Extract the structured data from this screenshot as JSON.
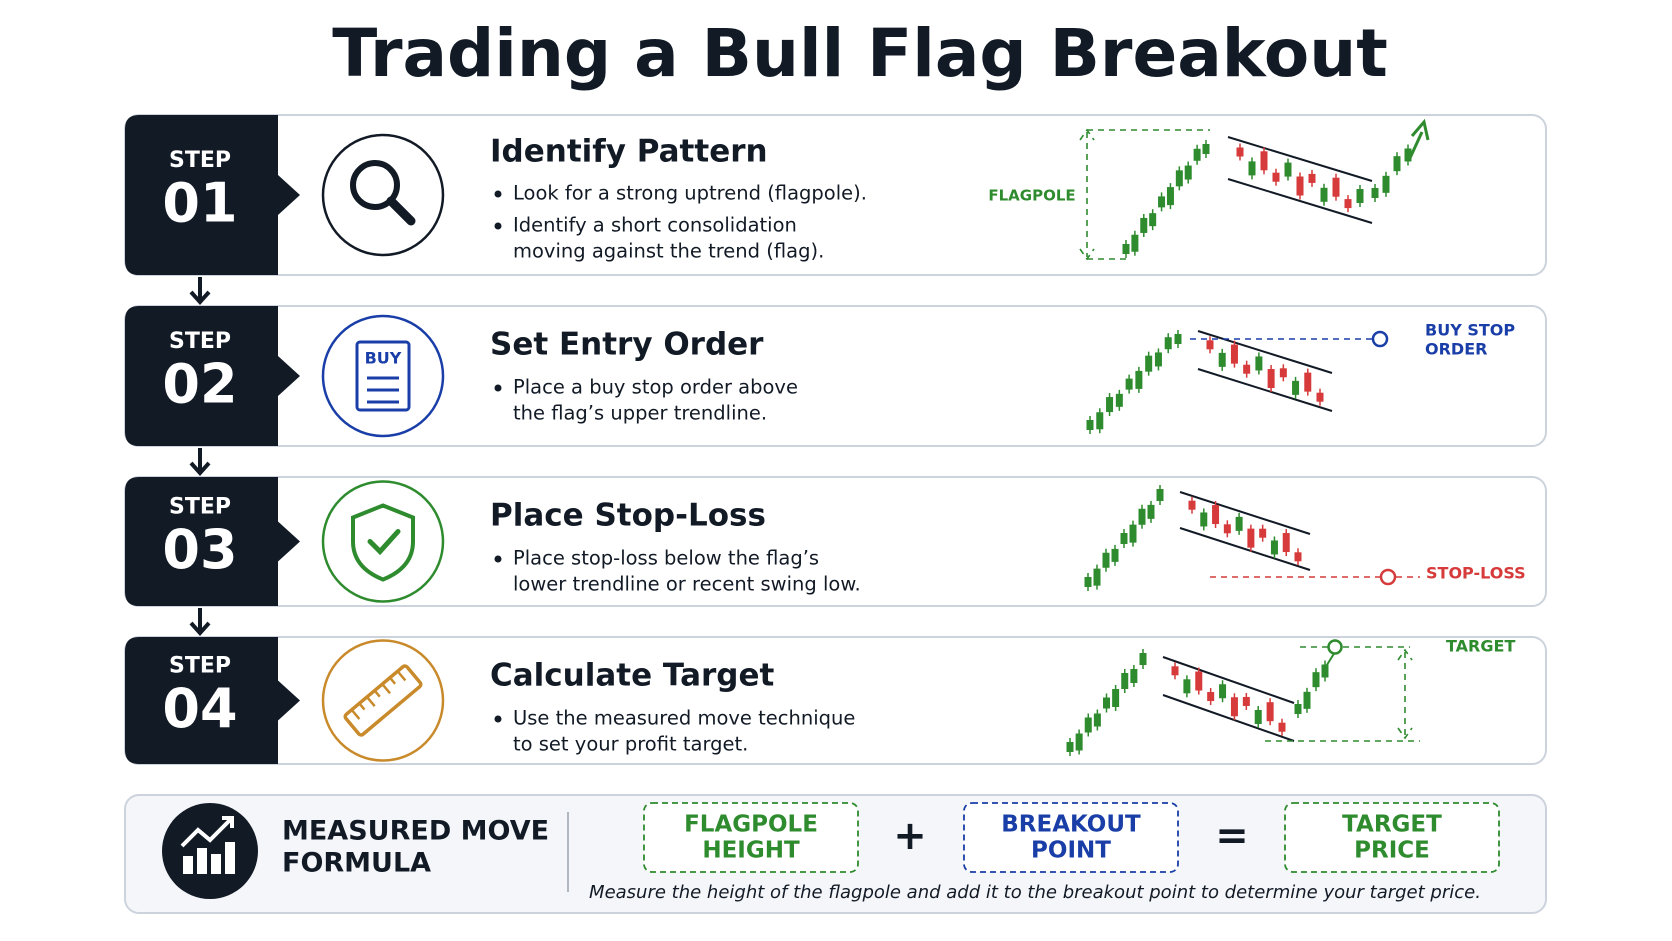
{
  "title": "Trading a Bull Flag Breakout",
  "steps": [
    {
      "label": "STEP",
      "number": "01",
      "heading": "Identify Pattern",
      "bullets": [
        [
          "Look for a strong uptrend (flagpole)."
        ],
        [
          "Identify a short consolidation",
          "moving against the trend (flag)."
        ]
      ],
      "chart_labels": [
        "FLAGPOLE"
      ]
    },
    {
      "label": "STEP",
      "number": "02",
      "heading": "Set Entry Order",
      "icon_label": "BUY",
      "bullets": [
        [
          "Place a buy stop order above",
          "the flag’s upper trendline."
        ]
      ],
      "chart_labels": [
        "BUY STOP",
        "ORDER"
      ]
    },
    {
      "label": "STEP",
      "number": "03",
      "heading": "Place Stop-Loss",
      "bullets": [
        [
          "Place stop-loss below the flag’s",
          "lower trendline or recent swing low."
        ]
      ],
      "chart_labels": [
        "STOP-LOSS"
      ]
    },
    {
      "label": "STEP",
      "number": "04",
      "heading": "Calculate Target",
      "bullets": [
        [
          "Use the measured move technique",
          "to set your profit target."
        ]
      ],
      "chart_labels": [
        "TARGET"
      ]
    }
  ],
  "formula": {
    "title": [
      "MEASURED MOVE",
      "FORMULA"
    ],
    "terms": [
      [
        "FLAGPOLE",
        "HEIGHT"
      ],
      [
        "BREAKOUT",
        "POINT"
      ],
      [
        "TARGET",
        "PRICE"
      ]
    ],
    "operators": [
      "+",
      "="
    ],
    "note": "Measure the height of the flagpole and add it to the breakout point to determine your target price."
  }
}
